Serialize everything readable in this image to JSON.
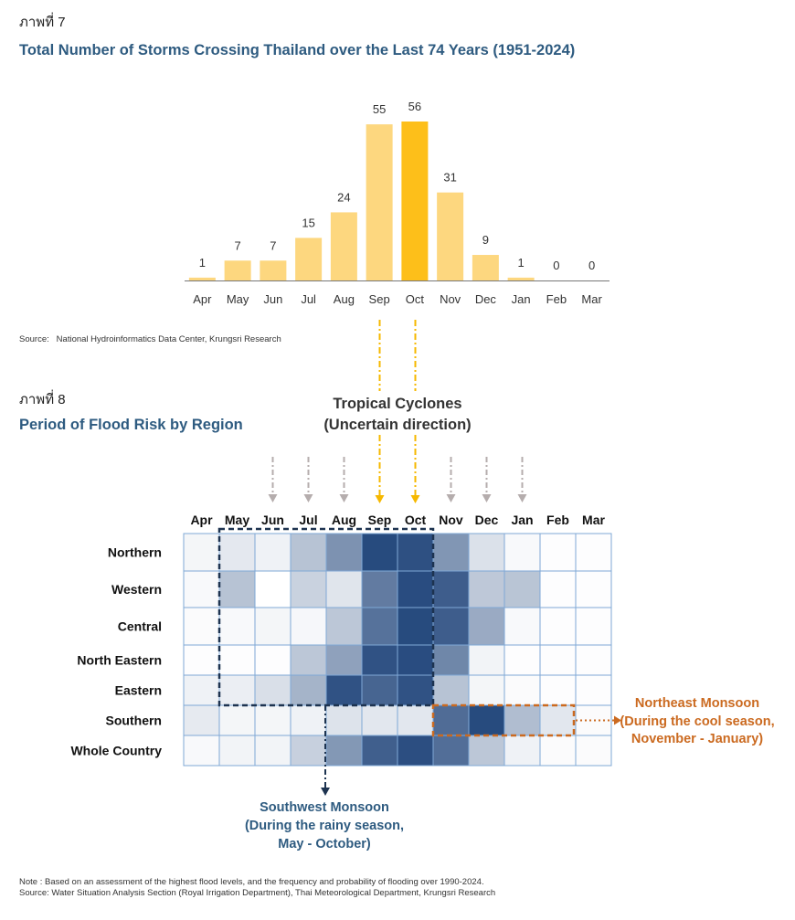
{
  "figure7": {
    "label": "ภาพที่ 7",
    "title": "Total Number of Storms Crossing Thailand over the Last 74 Years (1951-2024)",
    "source_prefix": "Source:",
    "source_text": "National Hydroinformatics Data Center, Krungsri Research"
  },
  "figure8": {
    "label": "ภาพที่ 8",
    "title": "Period of Flood Risk by Region",
    "tropical_line1": "Tropical Cyclones",
    "tropical_line2": "(Uncertain direction)",
    "ne_monsoon_line1": "Northeast Monsoon",
    "ne_monsoon_line2": "(During the cool season,",
    "ne_monsoon_line3": "November - January)",
    "sw_monsoon_line1": "Southwest Monsoon",
    "sw_monsoon_line2": "(During the rainy season,",
    "sw_monsoon_line3": "May - October)",
    "note": "Note : Based on an assessment of the highest flood levels, and the frequency and probability of flooding over 1990-2024.",
    "source": "Source: Water Situation Analysis Section (Royal Irrigation Department), Thai Meteorological Department, Krungsri Research"
  },
  "colors": {
    "bar": "#fdd77f",
    "bar_highlight": "#fdbf1a",
    "heat_dark": "#1e4379",
    "tropical": "#f6b800",
    "arrow_grey": "#b5adad",
    "sw_box": "#1d3350",
    "ne_box": "#cb6a20",
    "title": "#2e5b80"
  },
  "chart_data": [
    {
      "type": "bar",
      "title": "Total Number of Storms Crossing Thailand over the Last 74 Years (1951-2024)",
      "categories": [
        "Apr",
        "May",
        "Jun",
        "Jul",
        "Aug",
        "Sep",
        "Oct",
        "Nov",
        "Dec",
        "Jan",
        "Feb",
        "Mar"
      ],
      "values": [
        1,
        7,
        7,
        15,
        24,
        55,
        56,
        31,
        9,
        1,
        0,
        0
      ],
      "highlight": "Oct",
      "xlabel": "",
      "ylabel": "",
      "ylim": [
        0,
        56
      ],
      "grid": false,
      "legend": "none"
    },
    {
      "type": "heatmap",
      "title": "Period of Flood Risk by Region",
      "columns": [
        "Apr",
        "May",
        "Jun",
        "Jul",
        "Aug",
        "Sep",
        "Oct",
        "Nov",
        "Dec",
        "Jan",
        "Feb",
        "Mar"
      ],
      "rows": [
        "Northern",
        "Western",
        "Central",
        "North Eastern",
        "Eastern",
        "Southern",
        "Whole Country"
      ],
      "intensity_scale": [
        0,
        1
      ],
      "values": [
        [
          0.05,
          0.12,
          0.07,
          0.32,
          0.58,
          0.96,
          0.93,
          0.56,
          0.16,
          0.03,
          0.01,
          0.01
        ],
        [
          0.03,
          0.32,
          0.0,
          0.24,
          0.14,
          0.7,
          0.95,
          0.86,
          0.29,
          0.31,
          0.01,
          0.01
        ],
        [
          0.02,
          0.03,
          0.05,
          0.04,
          0.3,
          0.75,
          0.96,
          0.86,
          0.45,
          0.03,
          0.01,
          0.01
        ],
        [
          0.01,
          0.01,
          0.01,
          0.3,
          0.5,
          0.92,
          0.95,
          0.64,
          0.06,
          0.01,
          0.01,
          0.01
        ],
        [
          0.07,
          0.09,
          0.17,
          0.4,
          0.92,
          0.82,
          0.92,
          0.32,
          0.05,
          0.02,
          0.01,
          0.01
        ],
        [
          0.11,
          0.05,
          0.05,
          0.07,
          0.15,
          0.13,
          0.13,
          0.78,
          0.96,
          0.35,
          0.13,
          0.02
        ],
        [
          0.03,
          0.06,
          0.06,
          0.25,
          0.55,
          0.85,
          0.94,
          0.77,
          0.3,
          0.07,
          0.02,
          0.02
        ]
      ],
      "grey_arrow_months": [
        "Jun",
        "Jul",
        "Aug",
        "Nov",
        "Dec",
        "Jan"
      ],
      "tropical_arrow_months": [
        "Sep",
        "Oct"
      ],
      "southwest_monsoon": {
        "rows": [
          "Northern",
          "Western",
          "Central",
          "North Eastern",
          "Eastern"
        ],
        "months": [
          "May",
          "Oct"
        ]
      },
      "northeast_monsoon": {
        "rows": [
          "Southern"
        ],
        "months": [
          "Nov",
          "Jan"
        ]
      }
    }
  ]
}
